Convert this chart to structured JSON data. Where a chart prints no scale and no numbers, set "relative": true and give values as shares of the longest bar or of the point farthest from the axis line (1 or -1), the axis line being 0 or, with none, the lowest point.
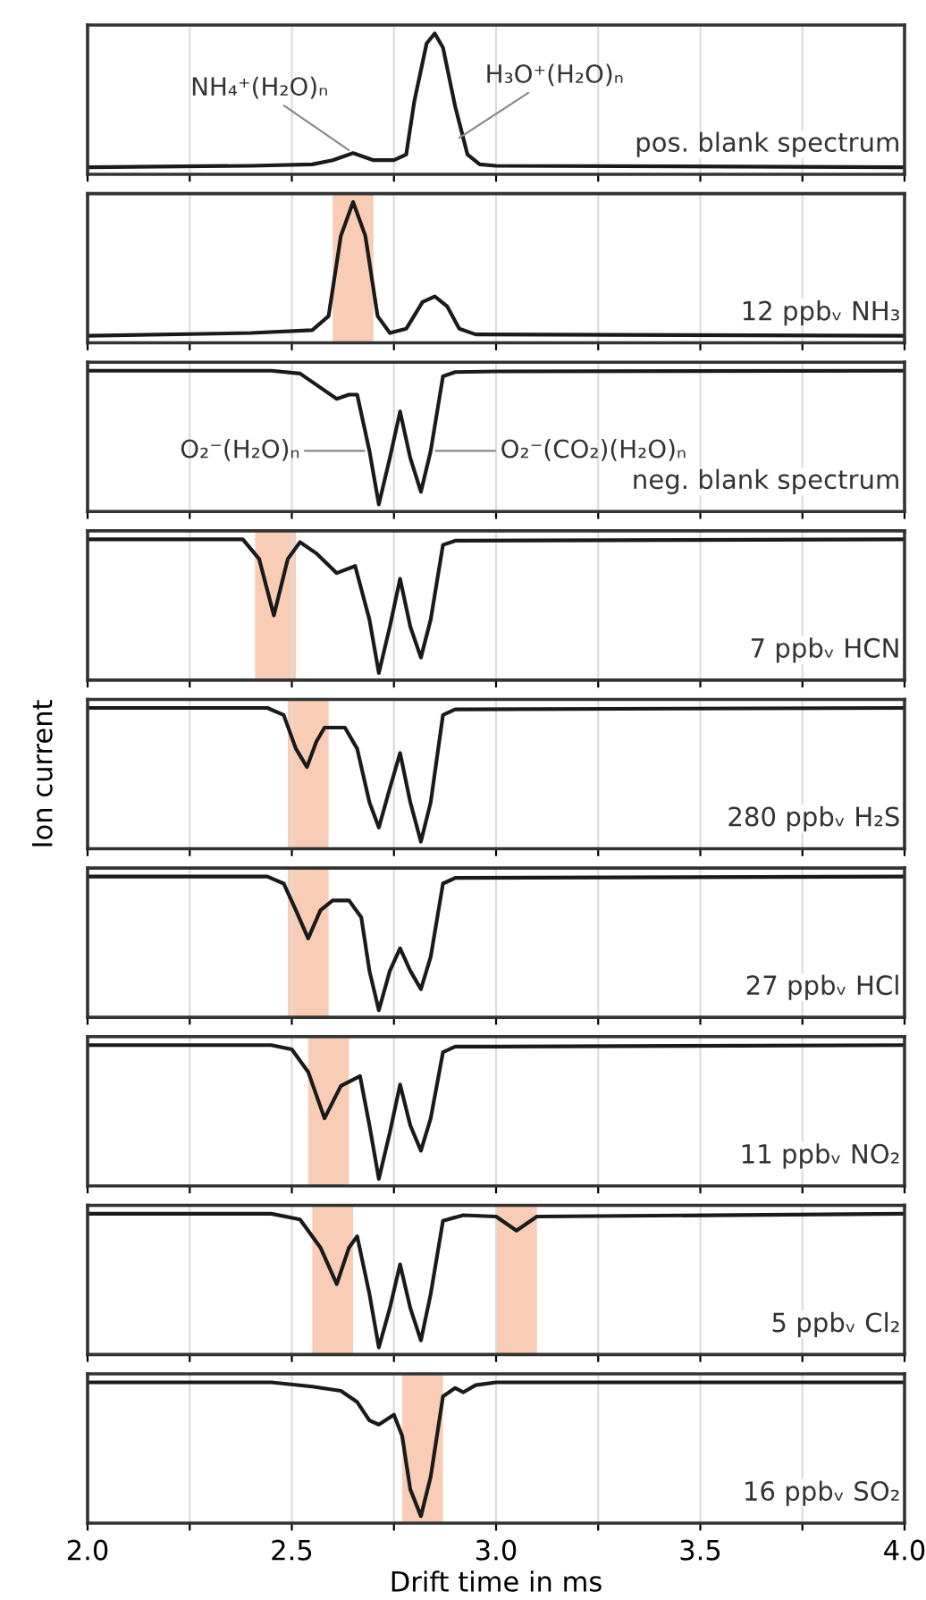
{
  "chart_data": [
    {
      "type": "line",
      "relative": true,
      "xlim": [
        2.0,
        4.0
      ],
      "xticks": [
        2.0,
        {
          "value": 2.25,
          "label": null
        },
        2.5,
        {
          "value": 2.75,
          "label": null
        },
        3.0,
        {
          "value": 3.25,
          "label": null
        },
        3.5,
        {
          "value": 3.75,
          "label": null
        },
        4.0
      ],
      "tick_labels": false,
      "grid": "x",
      "legend": false,
      "series": [
        {
          "color": "#1a1a1a",
          "x": [
            2.0,
            2.4,
            2.55,
            2.6,
            2.65,
            2.7,
            2.75,
            2.78,
            2.8,
            2.83,
            2.85,
            2.87,
            2.9,
            2.93,
            2.96,
            3.0,
            4.0
          ],
          "values": [
            0.05,
            0.06,
            0.07,
            0.1,
            0.15,
            0.1,
            0.1,
            0.14,
            0.52,
            0.93,
            1,
            0.9,
            0.48,
            0.14,
            0.07,
            0.06,
            0.05
          ]
        }
      ],
      "annotations": [
        {
          "text": "NH₄⁺(H₂O)ₙ",
          "x": 2.65,
          "y": 0.15
        },
        {
          "text": "H₃O⁺(H₂O)ₙ",
          "x": 2.9,
          "y": 0.24
        },
        "pos. blank spectrum"
      ]
    },
    {
      "type": "line",
      "relative": true,
      "xlim": [
        2.0,
        4.0
      ],
      "xticks": [
        2.0,
        {
          "value": 2.25,
          "label": null
        },
        2.5,
        {
          "value": 2.75,
          "label": null
        },
        3.0,
        {
          "value": 3.25,
          "label": null
        },
        3.5,
        {
          "value": 3.75,
          "label": null
        },
        4.0
      ],
      "tick_labels": false,
      "grid": "x",
      "legend": false,
      "series": [
        {
          "color": "#1a1a1a",
          "x": [
            2.0,
            2.4,
            2.55,
            2.59,
            2.62,
            2.65,
            2.68,
            2.71,
            2.74,
            2.78,
            2.82,
            2.85,
            2.88,
            2.91,
            2.95,
            4.0
          ],
          "values": [
            0.05,
            0.07,
            0.09,
            0.19,
            0.76,
            1,
            0.76,
            0.19,
            0.07,
            0.1,
            0.29,
            0.33,
            0.26,
            0.1,
            0.06,
            0.05
          ]
        }
      ],
      "bands": [
        {
          "axis": "x",
          "from": 2.6,
          "to": 2.7,
          "color": "#f9cdb5"
        }
      ],
      "annotations": [
        "12 ppbᵥ NH₃"
      ]
    },
    {
      "type": "line",
      "relative": true,
      "xlim": [
        2.0,
        4.0
      ],
      "xticks": [
        2.0,
        {
          "value": 2.25,
          "label": null
        },
        2.5,
        {
          "value": 2.75,
          "label": null
        },
        3.0,
        {
          "value": 3.25,
          "label": null
        },
        3.5,
        {
          "value": 3.75,
          "label": null
        },
        4.0
      ],
      "tick_labels": false,
      "grid": "x",
      "legend": false,
      "series": [
        {
          "color": "#1a1a1a",
          "x": [
            2.0,
            2.45,
            2.52,
            2.57,
            2.61,
            2.64,
            2.66,
            2.69,
            2.713,
            2.74,
            2.765,
            2.79,
            2.816,
            2.84,
            2.87,
            2.9,
            3.0,
            4.0
          ],
          "values": [
            1,
            1,
            0.98,
            0.88,
            0.8,
            0.83,
            0.83,
            0.43,
            0.05,
            0.38,
            0.71,
            0.38,
            0.14,
            0.43,
            0.96,
            0.99,
            0.995,
            1
          ]
        }
      ],
      "annotations": [
        {
          "text": "O₂⁻(H₂O)ₙ",
          "x": 2.69,
          "y": 0.43
        },
        {
          "text": "O₂⁻(CO₂)(H₂O)ₙ",
          "x": 2.84,
          "y": 0.43
        },
        "neg. blank spectrum"
      ]
    },
    {
      "type": "line",
      "relative": true,
      "xlim": [
        2.0,
        4.0
      ],
      "xticks": [
        2.0,
        {
          "value": 2.25,
          "label": null
        },
        2.5,
        {
          "value": 2.75,
          "label": null
        },
        3.0,
        {
          "value": 3.25,
          "label": null
        },
        3.5,
        {
          "value": 3.75,
          "label": null
        },
        4.0
      ],
      "tick_labels": false,
      "grid": "x",
      "legend": false,
      "series": [
        {
          "color": "#1a1a1a",
          "x": [
            2.0,
            2.38,
            2.42,
            2.456,
            2.49,
            2.52,
            2.56,
            2.61,
            2.655,
            2.69,
            2.713,
            2.74,
            2.765,
            2.79,
            2.816,
            2.84,
            2.87,
            2.9,
            4.0
          ],
          "values": [
            1,
            1,
            0.86,
            0.46,
            0.86,
            0.98,
            0.9,
            0.76,
            0.81,
            0.43,
            0.05,
            0.38,
            0.72,
            0.38,
            0.16,
            0.43,
            0.96,
            0.99,
            1
          ]
        }
      ],
      "bands": [
        {
          "axis": "x",
          "from": 2.41,
          "to": 2.51,
          "color": "#f9cdb5"
        }
      ],
      "annotations": [
        "7 ppbᵥ HCN"
      ]
    },
    {
      "type": "line",
      "relative": true,
      "xlim": [
        2.0,
        4.0
      ],
      "xticks": [
        2.0,
        {
          "value": 2.25,
          "label": null
        },
        2.5,
        {
          "value": 2.75,
          "label": null
        },
        3.0,
        {
          "value": 3.25,
          "label": null
        },
        3.5,
        {
          "value": 3.75,
          "label": null
        },
        4.0
      ],
      "tick_labels": false,
      "grid": "x",
      "legend": false,
      "ylabel": "Ion current",
      "series": [
        {
          "color": "#1a1a1a",
          "x": [
            2.0,
            2.44,
            2.48,
            2.51,
            2.537,
            2.56,
            2.58,
            2.63,
            2.66,
            2.69,
            2.713,
            2.74,
            2.765,
            2.79,
            2.816,
            2.84,
            2.87,
            2.9,
            4.0
          ],
          "values": [
            1,
            1,
            0.95,
            0.71,
            0.58,
            0.76,
            0.86,
            0.86,
            0.71,
            0.33,
            0.15,
            0.43,
            0.68,
            0.33,
            0.05,
            0.33,
            0.95,
            0.99,
            1
          ]
        }
      ],
      "bands": [
        {
          "axis": "x",
          "from": 2.49,
          "to": 2.59,
          "color": "#f9cdb5"
        }
      ],
      "annotations": [
        "280 ppbᵥ H₂S"
      ]
    },
    {
      "type": "line",
      "relative": true,
      "xlim": [
        2.0,
        4.0
      ],
      "xticks": [
        2.0,
        {
          "value": 2.25,
          "label": null
        },
        2.5,
        {
          "value": 2.75,
          "label": null
        },
        3.0,
        {
          "value": 3.25,
          "label": null
        },
        3.5,
        {
          "value": 3.75,
          "label": null
        },
        4.0
      ],
      "tick_labels": false,
      "grid": "x",
      "legend": false,
      "series": [
        {
          "color": "#1a1a1a",
          "x": [
            2.0,
            2.44,
            2.48,
            2.51,
            2.54,
            2.57,
            2.6,
            2.64,
            2.67,
            2.69,
            2.713,
            2.74,
            2.765,
            2.79,
            2.816,
            2.84,
            2.87,
            2.9,
            4.0
          ],
          "values": [
            1,
            1,
            0.95,
            0.76,
            0.56,
            0.76,
            0.83,
            0.83,
            0.71,
            0.33,
            0.05,
            0.33,
            0.49,
            0.33,
            0.2,
            0.43,
            0.95,
            0.99,
            1
          ]
        }
      ],
      "bands": [
        {
          "axis": "x",
          "from": 2.49,
          "to": 2.59,
          "color": "#f9cdb5"
        }
      ],
      "annotations": [
        "27 ppbᵥ HCl"
      ]
    },
    {
      "type": "line",
      "relative": true,
      "xlim": [
        2.0,
        4.0
      ],
      "xticks": [
        2.0,
        {
          "value": 2.25,
          "label": null
        },
        2.5,
        {
          "value": 2.75,
          "label": null
        },
        3.0,
        {
          "value": 3.25,
          "label": null
        },
        3.5,
        {
          "value": 3.75,
          "label": null
        },
        4.0
      ],
      "tick_labels": false,
      "grid": "x",
      "legend": false,
      "series": [
        {
          "color": "#1a1a1a",
          "x": [
            2.0,
            2.45,
            2.5,
            2.54,
            2.58,
            2.62,
            2.667,
            2.69,
            2.713,
            2.74,
            2.765,
            2.79,
            2.816,
            2.84,
            2.87,
            2.9,
            3.0,
            4.0
          ],
          "values": [
            1,
            1,
            0.97,
            0.81,
            0.48,
            0.71,
            0.78,
            0.43,
            0.05,
            0.38,
            0.72,
            0.43,
            0.25,
            0.48,
            0.95,
            0.99,
            0.99,
            1
          ]
        }
      ],
      "bands": [
        {
          "axis": "x",
          "from": 2.54,
          "to": 2.64,
          "color": "#f9cdb5"
        }
      ],
      "annotations": [
        "11 ppbᵥ NO₂"
      ]
    },
    {
      "type": "line",
      "relative": true,
      "xlim": [
        2.0,
        4.0
      ],
      "xticks": [
        2.0,
        {
          "value": 2.25,
          "label": null
        },
        2.5,
        {
          "value": 2.75,
          "label": null
        },
        3.0,
        {
          "value": 3.25,
          "label": null
        },
        3.5,
        {
          "value": 3.75,
          "label": null
        },
        4.0
      ],
      "tick_labels": false,
      "grid": "x",
      "legend": false,
      "series": [
        {
          "color": "#1a1a1a",
          "x": [
            2.0,
            2.45,
            2.52,
            2.57,
            2.61,
            2.64,
            2.66,
            2.69,
            2.713,
            2.74,
            2.765,
            2.79,
            2.816,
            2.84,
            2.87,
            2.92,
            3.0,
            3.05,
            3.1,
            4.0
          ],
          "values": [
            1,
            1,
            0.96,
            0.76,
            0.5,
            0.76,
            0.84,
            0.43,
            0.05,
            0.33,
            0.64,
            0.33,
            0.1,
            0.43,
            0.95,
            0.99,
            0.98,
            0.88,
            0.98,
            1
          ]
        }
      ],
      "bands": [
        {
          "axis": "x",
          "from": 2.55,
          "to": 2.65,
          "color": "#f9cdb5"
        },
        {
          "axis": "x",
          "from": 3.0,
          "to": 3.1,
          "color": "#f9cdb5"
        }
      ],
      "annotations": [
        "5 ppbᵥ Cl₂"
      ]
    },
    {
      "type": "line",
      "relative": true,
      "xlim": [
        2.0,
        4.0
      ],
      "xticks": [
        {
          "value": 2.0,
          "label": "2.0"
        },
        {
          "value": 2.25,
          "label": null
        },
        2.5,
        {
          "value": 2.75,
          "label": null
        },
        {
          "value": 3.0,
          "label": "3.0"
        },
        {
          "value": 3.25,
          "label": null
        },
        3.5,
        {
          "value": 3.75,
          "label": null
        },
        {
          "value": 4.0,
          "label": "4.0"
        }
      ],
      "tick_labels": "x",
      "grid": "x",
      "legend": false,
      "xlabel": "Drift time in ms",
      "series": [
        {
          "color": "#1a1a1a",
          "x": [
            2.0,
            2.45,
            2.55,
            2.62,
            2.66,
            2.69,
            2.713,
            2.75,
            2.77,
            2.79,
            2.816,
            2.84,
            2.87,
            2.9,
            2.92,
            2.95,
            3.0,
            4.0
          ],
          "values": [
            1,
            1,
            0.97,
            0.94,
            0.86,
            0.73,
            0.7,
            0.77,
            0.62,
            0.24,
            0.05,
            0.33,
            0.9,
            0.96,
            0.93,
            0.98,
            1,
            1
          ]
        }
      ],
      "bands": [
        {
          "axis": "x",
          "from": 2.77,
          "to": 2.87,
          "color": "#f9cdb5"
        }
      ],
      "annotations": [
        "16 ppbᵥ SO₂"
      ]
    }
  ]
}
